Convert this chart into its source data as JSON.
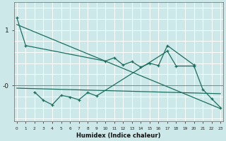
{
  "bg_color": "#cce8e8",
  "grid_color": "#ffffff",
  "line_color": "#1a6e5e",
  "xlabel": "Humidex (Indice chaleur)",
  "ylabel_1": "1",
  "ylabel_0": "-0",
  "xlim": [
    -0.3,
    23.3
  ],
  "ylim": [
    -0.65,
    1.5
  ],
  "steep_line_x": [
    0,
    23
  ],
  "steep_line_y": [
    1.1,
    -0.42
  ],
  "flat_line_x": [
    0,
    23
  ],
  "flat_line_y": [
    -0.05,
    -0.15
  ],
  "upper_x": [
    0,
    1,
    10,
    11,
    12,
    13,
    14,
    15,
    16,
    17,
    20
  ],
  "upper_y": [
    1.22,
    0.72,
    0.44,
    0.5,
    0.37,
    0.43,
    0.33,
    0.4,
    0.36,
    0.72,
    0.37
  ],
  "lower_x": [
    2,
    3,
    4,
    5,
    6,
    7,
    8,
    9,
    17,
    18,
    20,
    21,
    22,
    23
  ],
  "lower_y": [
    -0.12,
    -0.27,
    -0.35,
    -0.18,
    -0.21,
    -0.26,
    -0.13,
    -0.19,
    0.62,
    0.35,
    0.35,
    -0.07,
    -0.24,
    -0.4
  ]
}
